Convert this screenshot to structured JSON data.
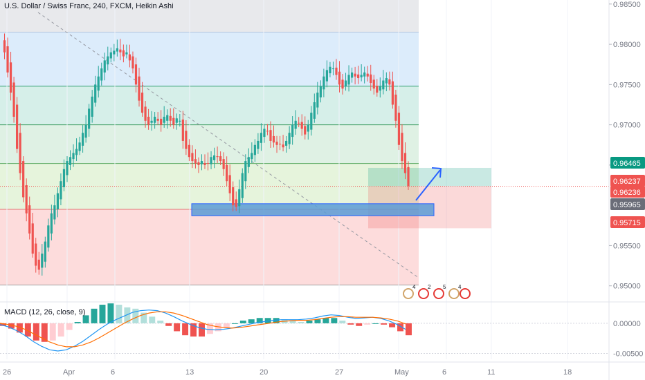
{
  "header": {
    "title": "U.S. Dollar / Swiss Franc, 240, FXCM, Heikin Ashi"
  },
  "macd": {
    "title": "MACD (12, 26, close, 9)"
  },
  "chart_data": [
    {
      "type": "candlestick",
      "title": "U.S. Dollar / Swiss Franc, 240, FXCM, Heikin Ashi",
      "x_ticks": [
        "26",
        "Apr",
        "6",
        "13",
        "20",
        "27",
        "May",
        "6",
        "11",
        "18"
      ],
      "y_ticks": [
        "0.98500",
        "0.98000",
        "0.97500",
        "0.97000",
        "0.96500",
        "0.95500",
        "0.95000"
      ],
      "ylim": [
        0.948,
        0.9855
      ],
      "price_labels": [
        {
          "text": "0.96465",
          "color": "#089981"
        },
        {
          "text": "0.96237",
          "color": "#ef5350"
        },
        {
          "text": "0.96236",
          "color": "#ef5350"
        },
        {
          "text": "0.95965",
          "color": "#6a6d78"
        },
        {
          "text": "0.95715",
          "color": "#ef5350"
        }
      ],
      "fib_levels": [
        0.9815,
        0.9748,
        0.97,
        0.9652,
        0.9595,
        0.9501
      ],
      "support_zone": [
        0.9587,
        0.9602
      ],
      "trade_box": {
        "entry": 0.96236,
        "target": 0.96465,
        "stop": 0.95715
      },
      "events": [
        "4",
        "2",
        "5",
        "4"
      ],
      "series": [
        {
          "kind": "heikin_ashi",
          "values": [
            0.9805,
            0.979,
            0.9765,
            0.974,
            0.971,
            0.967,
            0.964,
            0.961,
            0.959,
            0.9565,
            0.954,
            0.9525,
            0.952,
            0.954,
            0.9555,
            0.9575,
            0.959,
            0.96,
            0.9615,
            0.963,
            0.9645,
            0.9655,
            0.966,
            0.9665,
            0.967,
            0.9678,
            0.969,
            0.97,
            0.972,
            0.9735,
            0.975,
            0.976,
            0.977,
            0.978,
            0.9785,
            0.979,
            0.9792,
            0.9795,
            0.979,
            0.9785,
            0.979,
            0.978,
            0.977,
            0.975,
            0.973,
            0.9715,
            0.9705,
            0.97,
            0.9705,
            0.971,
            0.9705,
            0.97,
            0.971,
            0.9712,
            0.9705,
            0.97,
            0.9708,
            0.9705,
            0.968,
            0.967,
            0.966,
            0.9655,
            0.9652,
            0.965,
            0.9655,
            0.965,
            0.9652,
            0.966,
            0.9662,
            0.966,
            0.9655,
            0.9645,
            0.963,
            0.9615,
            0.96,
            0.9598,
            0.962,
            0.964,
            0.9655,
            0.966,
            0.9665,
            0.9675,
            0.968,
            0.969,
            0.9695,
            0.9692,
            0.968,
            0.9678,
            0.9675,
            0.9676,
            0.9672,
            0.968,
            0.969,
            0.97,
            0.9705,
            0.9702,
            0.9695,
            0.9688,
            0.97,
            0.9715,
            0.9728,
            0.974,
            0.9748,
            0.976,
            0.9768,
            0.9772,
            0.977,
            0.9762,
            0.975,
            0.9745,
            0.9755,
            0.9762,
            0.9765,
            0.976,
            0.9758,
            0.9762,
            0.9765,
            0.976,
            0.9752,
            0.9745,
            0.974,
            0.9748,
            0.9755,
            0.9758,
            0.975,
            0.9725,
            0.9705,
            0.9675,
            0.9655,
            0.964,
            0.9624
          ]
        },
        {
          "kind": "macd",
          "y_ticks": [
            "0.00000",
            "-0.00500"
          ],
          "macd_line": [
            -0.0002,
            -0.0006,
            -0.0012,
            -0.002,
            -0.003,
            -0.0038,
            -0.0044,
            -0.0046,
            -0.0044,
            -0.0038,
            -0.003,
            -0.002,
            -0.001,
            -0.0001,
            0.0006,
            0.0012,
            0.0018,
            0.0021,
            0.0022,
            0.0021,
            0.0017,
            0.0011,
            0.0004,
            -0.0002,
            -0.0007,
            -0.001,
            -0.0011,
            -0.001,
            -0.0008,
            -0.0005,
            -0.0002,
            0.0001,
            0.0003,
            0.0005,
            0.0006,
            0.0006,
            0.0006,
            0.0007,
            0.0009,
            0.0012,
            0.0014,
            0.0013,
            0.001,
            0.0008,
            0.0009,
            0.001,
            0.0008,
            0.0004,
            -0.0002,
            -0.001
          ],
          "signal_line": [
            0.0,
            -0.0002,
            -0.0005,
            -0.001,
            -0.0017,
            -0.0024,
            -0.0031,
            -0.0036,
            -0.0039,
            -0.0039,
            -0.0036,
            -0.0031,
            -0.0024,
            -0.0016,
            -0.0008,
            0.0,
            0.0007,
            0.0013,
            0.0017,
            0.0019,
            0.0019,
            0.0017,
            0.0013,
            0.0008,
            0.0003,
            -0.0002,
            -0.0005,
            -0.0007,
            -0.0008,
            -0.0007,
            -0.0005,
            -0.0003,
            -0.0001,
            0.0001,
            0.0003,
            0.0004,
            0.0005,
            0.0005,
            0.0006,
            0.0008,
            0.001,
            0.0011,
            0.0011,
            0.001,
            0.001,
            0.001,
            0.0009,
            0.0007,
            0.0004,
            -0.0001
          ]
        }
      ]
    }
  ]
}
